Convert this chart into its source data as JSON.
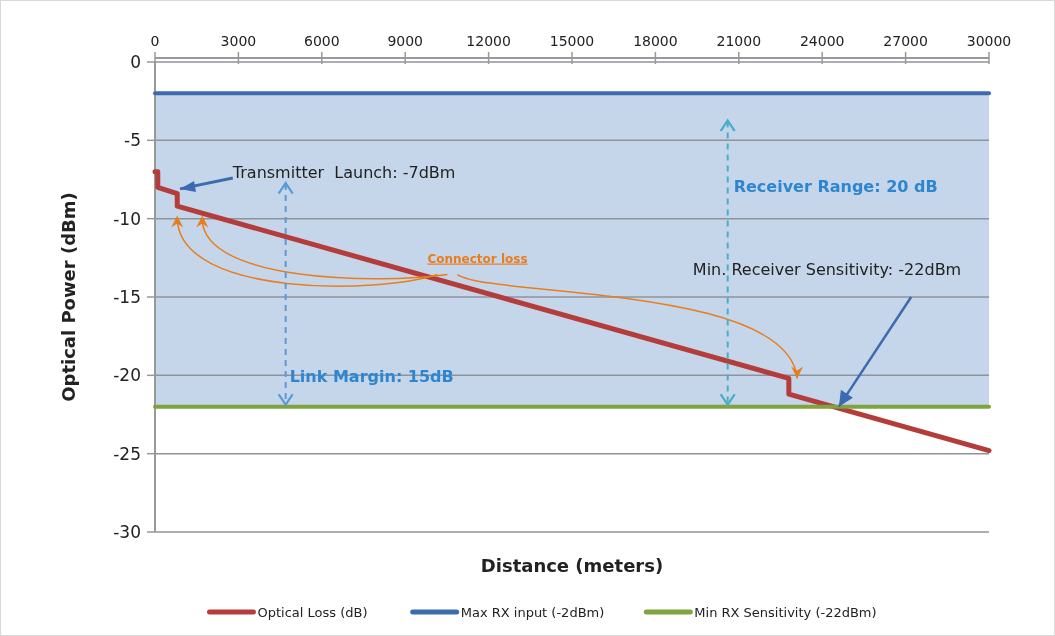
{
  "chart_data": {
    "type": "line",
    "xlabel": "Distance  (meters)",
    "ylabel": "Optical Power (dBm)",
    "xlim": [
      0,
      30000
    ],
    "xticks": [
      0,
      3000,
      6000,
      9000,
      12000,
      15000,
      18000,
      21000,
      24000,
      27000,
      30000
    ],
    "ylim": [
      -30,
      0
    ],
    "yticks": [
      -30,
      -25,
      -20,
      -15,
      -10,
      -5,
      0
    ],
    "grid": "y",
    "legend": "bottom",
    "marker": "none",
    "line_style": "solid",
    "bands": [
      {
        "axis": "y",
        "from": -22,
        "to": -2,
        "color": "#c6d6ea"
      }
    ],
    "series": [
      {
        "name": "Optical Loss (dB)",
        "color": "#b43c3a",
        "x": [
          0,
          100,
          100,
          800,
          800,
          22800,
          22800,
          30000
        ],
        "values": [
          -7,
          -7,
          -8,
          -8.4,
          -9.2,
          -20.2,
          -21.2,
          -24.8
        ]
      },
      {
        "name": "Max RX input  (-2dBm)",
        "color": "#3d6bb0",
        "x": [
          0,
          30000
        ],
        "values": [
          -2,
          -2
        ]
      },
      {
        "name": "Min RX Sensitivity (-22dBm)",
        "color": "#7ea43e",
        "x": [
          0,
          30000
        ],
        "values": [
          -22,
          -22
        ]
      }
    ],
    "annotations": [
      {
        "text": "Transmitter  Launch: -7dBm",
        "x": 900,
        "y": -8.1
      },
      "Connector loss",
      "Link Margin: 15dB",
      "Receiver Range: 20 dB",
      {
        "text": "Min. Receiver Sensitivity: -22dBm",
        "x": 24600,
        "y": -22
      }
    ]
  }
}
